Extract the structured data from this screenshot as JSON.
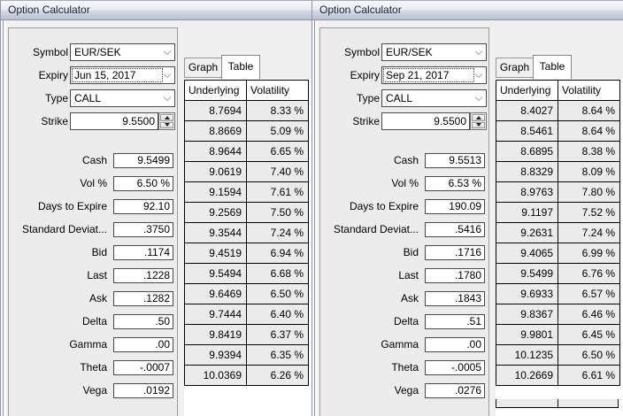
{
  "colors": {
    "titlebar_gradient_top": "#f7f8fa",
    "titlebar_gradient_bottom": "#b8c1ce",
    "window_border": "#8c94a6",
    "panel_bg": "#ececec",
    "field_border": "#4a4a4a",
    "table_row_bg": "#ebebeb",
    "table_border": "#000000"
  },
  "icons": {
    "dropdown": "chevron-down",
    "spin_up": "triangle-up",
    "spin_down": "triangle-down"
  },
  "windows": [
    {
      "title": "Option Calculator",
      "symbol": {
        "label": "Symbol",
        "value": "EUR/SEK"
      },
      "expiry": {
        "label": "Expiry",
        "value": "Jun 15, 2017"
      },
      "type": {
        "label": "Type",
        "value": "CALL"
      },
      "strike": {
        "label": "Strike",
        "value": "9.5500"
      },
      "fields": [
        {
          "label": "Cash",
          "value": "9.5499"
        },
        {
          "label": "Vol %",
          "value": "6.50 %"
        },
        {
          "label": "Days to Expire",
          "value": "92.10"
        },
        {
          "label": "Standard Deviat...",
          "value": ".3750"
        },
        {
          "label": "Bid",
          "value": ".1174"
        },
        {
          "label": "Last",
          "value": ".1228"
        },
        {
          "label": "Ask",
          "value": ".1282"
        },
        {
          "label": "Delta",
          "value": ".50"
        },
        {
          "label": "Gamma",
          "value": ".00"
        },
        {
          "label": "Theta",
          "value": "-.0007"
        },
        {
          "label": "Vega",
          "value": ".0192"
        }
      ],
      "tabs": {
        "graph": "Graph",
        "table": "Table"
      },
      "selected_tab": "Table",
      "grid": {
        "columns": [
          "Underlying",
          "Volatility"
        ],
        "rows": [
          [
            "8.7694",
            "8.33 %"
          ],
          [
            "8.8669",
            "5.09 %"
          ],
          [
            "8.9644",
            "6.65 %"
          ],
          [
            "9.0619",
            "7.40 %"
          ],
          [
            "9.1594",
            "7.61 %"
          ],
          [
            "9.2569",
            "7.50 %"
          ],
          [
            "9.3544",
            "7.24 %"
          ],
          [
            "9.4519",
            "6.94 %"
          ],
          [
            "9.5494",
            "6.68 %"
          ],
          [
            "9.6469",
            "6.50 %"
          ],
          [
            "9.7444",
            "6.40 %"
          ],
          [
            "9.8419",
            "6.37 %"
          ],
          [
            "9.9394",
            "6.35 %"
          ],
          [
            "10.0369",
            "6.26 %"
          ]
        ]
      }
    },
    {
      "title": "Option Calculator",
      "symbol": {
        "label": "Symbol",
        "value": "EUR/SEK"
      },
      "expiry": {
        "label": "Expiry",
        "value": "Sep 21, 2017"
      },
      "type": {
        "label": "Type",
        "value": "CALL"
      },
      "strike": {
        "label": "Strike",
        "value": "9.5500"
      },
      "fields": [
        {
          "label": "Cash",
          "value": "9.5513"
        },
        {
          "label": "Vol %",
          "value": "6.53 %"
        },
        {
          "label": "Days to Expire",
          "value": "190.09"
        },
        {
          "label": "Standard Deviat...",
          "value": ".5416"
        },
        {
          "label": "Bid",
          "value": ".1716"
        },
        {
          "label": "Last",
          "value": ".1780"
        },
        {
          "label": "Ask",
          "value": ".1843"
        },
        {
          "label": "Delta",
          "value": ".51"
        },
        {
          "label": "Gamma",
          "value": ".00"
        },
        {
          "label": "Theta",
          "value": "-.0005"
        },
        {
          "label": "Vega",
          "value": ".0276"
        }
      ],
      "tabs": {
        "graph": "Graph",
        "table": "Table"
      },
      "selected_tab": "Table",
      "grid": {
        "columns": [
          "Underlying",
          "Volatility"
        ],
        "rows": [
          [
            "8.4027",
            "8.64 %"
          ],
          [
            "8.5461",
            "8.64 %"
          ],
          [
            "8.6895",
            "8.38 %"
          ],
          [
            "8.8329",
            "8.09 %"
          ],
          [
            "8.9763",
            "7.80 %"
          ],
          [
            "9.1197",
            "7.52 %"
          ],
          [
            "9.2631",
            "7.24 %"
          ],
          [
            "9.4065",
            "6.99 %"
          ],
          [
            "9.5499",
            "6.76 %"
          ],
          [
            "9.6933",
            "6.57 %"
          ],
          [
            "9.8367",
            "6.46 %"
          ],
          [
            "9.9801",
            "6.45 %"
          ],
          [
            "10.1235",
            "6.50 %"
          ],
          [
            "10.2669",
            "6.61 %"
          ]
        ]
      }
    }
  ]
}
